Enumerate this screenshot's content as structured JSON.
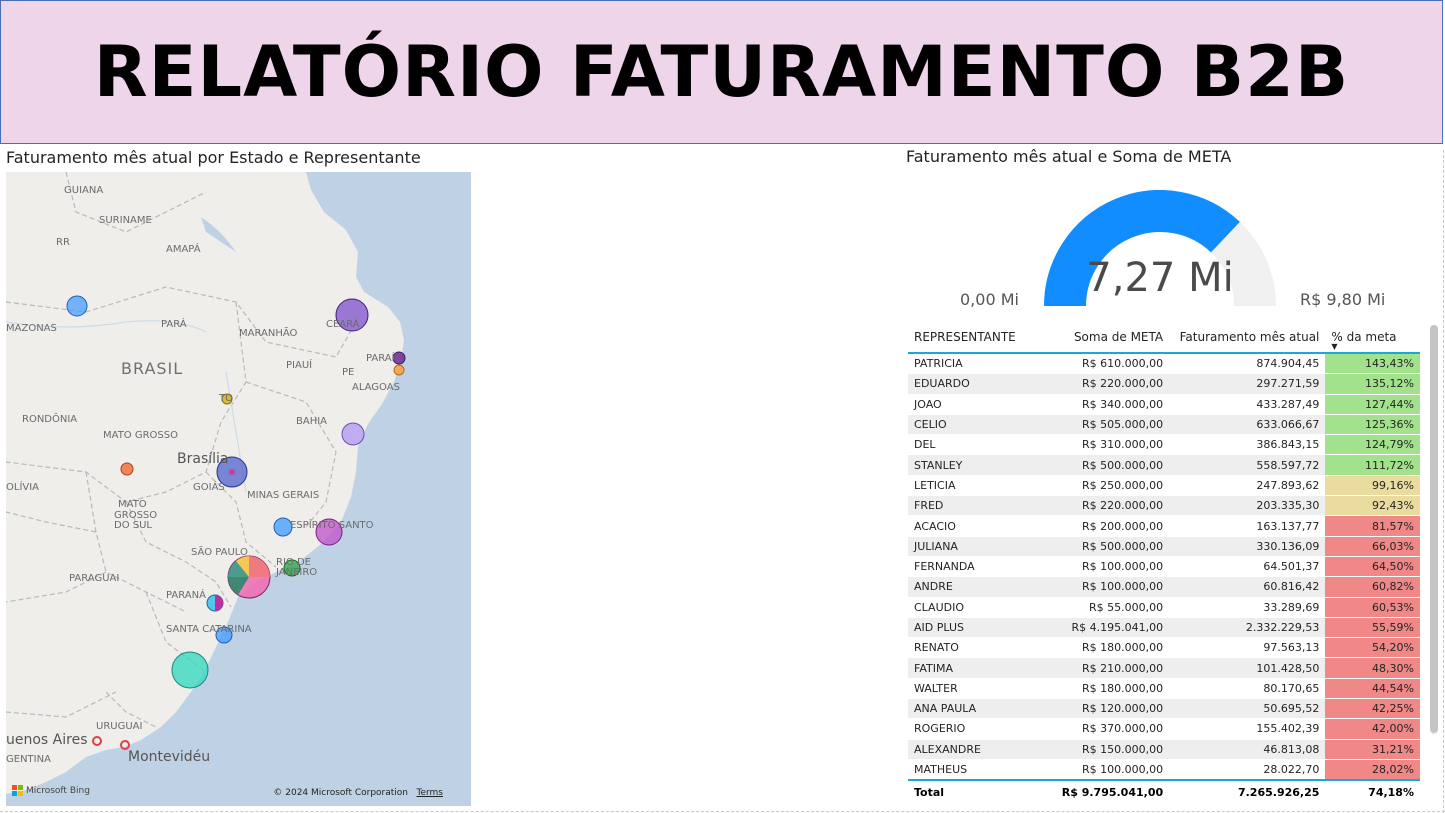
{
  "header": {
    "title": "RELATÓRIO FATURAMENTO B2B"
  },
  "map_visual": {
    "title": "Faturamento mês atual por Estado e Representante",
    "labels": {
      "guiana": "GUIANA",
      "suriname": "SURINAME",
      "rr": "RR",
      "amapa": "AMAPÁ",
      "amazonas": "MAZONAS",
      "para": "PARÁ",
      "maranhao": "MARANHÃO",
      "ceara": "CEARÁ",
      "brasil": "BRASIL",
      "piaui": "PIAUÍ",
      "paraiba": "PARAÍ",
      "pe": "PE",
      "alagoas": "ALAGOAS",
      "to": "TO",
      "rondonia": "RONDÔNIA",
      "bahia": "BAHIA",
      "mato_grosso": "MATO GROSSO",
      "brasilia": "Brasília",
      "bolivia": "OLÍVIA",
      "goias": "GOIÁS",
      "minas": "MINAS GERAIS",
      "ms1": "MATO",
      "ms2": "GROSSO",
      "ms3": "DO SUL",
      "es": "ESPÍRITO SANTO",
      "sao_paulo": "SÃO PAULO",
      "rio": "RIO DE JANEIRO",
      "paraguai": "PARAGUAI",
      "parana": "PARANÁ",
      "santa_catarina": "SANTA CATARINA",
      "uruguai": "URUGUAI",
      "buenos_aires": "uenos Aires",
      "argentina": "GENTINA",
      "montevideu": "Montevidéu"
    },
    "bing_label": "Microsoft Bing",
    "copyright": "© 2024 Microsoft Corporation",
    "terms": "Terms"
  },
  "gauge_visual": {
    "title": "Faturamento mês atual e Soma de META",
    "value_label": "7,27 Mi",
    "min_label": "0,00 Mi",
    "max_label": "R$ 9,80 Mi",
    "value": 7.27,
    "max": 9.8,
    "fill_color": "#118dff",
    "track_color": "#f0f0f0"
  },
  "table": {
    "headers": [
      "REPRESENTANTE",
      "Soma de META",
      "Faturamento mês atual",
      "% da meta"
    ],
    "rows": [
      [
        "PATRICIA",
        "R$ 610.000,00",
        "874.904,45",
        "143,43%",
        "green"
      ],
      [
        "EDUARDO",
        "R$ 220.000,00",
        "297.271,59",
        "135,12%",
        "green"
      ],
      [
        "JOAO",
        "R$ 340.000,00",
        "433.287,49",
        "127,44%",
        "green"
      ],
      [
        "CELIO",
        "R$ 505.000,00",
        "633.066,67",
        "125,36%",
        "green"
      ],
      [
        "DEL",
        "R$ 310.000,00",
        "386.843,15",
        "124,79%",
        "green"
      ],
      [
        "STANLEY",
        "R$ 500.000,00",
        "558.597,72",
        "111,72%",
        "green"
      ],
      [
        "LETICIA",
        "R$ 250.000,00",
        "247.893,62",
        "99,16%",
        "yellow"
      ],
      [
        "FRED",
        "R$ 220.000,00",
        "203.335,30",
        "92,43%",
        "yellow"
      ],
      [
        "ACACIO",
        "R$ 200.000,00",
        "163.137,77",
        "81,57%",
        "red"
      ],
      [
        "JULIANA",
        "R$ 500.000,00",
        "330.136,09",
        "66,03%",
        "red"
      ],
      [
        "FERNANDA",
        "R$ 100.000,00",
        "64.501,37",
        "64,50%",
        "red"
      ],
      [
        "ANDRE",
        "R$ 100.000,00",
        "60.816,42",
        "60,82%",
        "red"
      ],
      [
        "CLAUDIO",
        "R$ 55.000,00",
        "33.289,69",
        "60,53%",
        "red"
      ],
      [
        "AID PLUS",
        "R$ 4.195.041,00",
        "2.332.229,53",
        "55,59%",
        "red"
      ],
      [
        "RENATO",
        "R$ 180.000,00",
        "97.563,13",
        "54,20%",
        "red"
      ],
      [
        "FATIMA",
        "R$ 210.000,00",
        "101.428,50",
        "48,30%",
        "red"
      ],
      [
        "WALTER",
        "R$ 180.000,00",
        "80.170,65",
        "44,54%",
        "red"
      ],
      [
        "ANA PAULA",
        "R$ 120.000,00",
        "50.695,52",
        "42,25%",
        "red"
      ],
      [
        "ROGERIO",
        "R$ 370.000,00",
        "155.402,39",
        "42,00%",
        "red"
      ],
      [
        "ALEXANDRE",
        "R$ 150.000,00",
        "46.813,08",
        "31,21%",
        "red"
      ],
      [
        "MATHEUS",
        "R$ 100.000,00",
        "28.022,70",
        "28,02%",
        "red"
      ]
    ],
    "total": [
      "Total",
      "R$ 9.795.041,00",
      "7.265.926,25",
      "74,18%"
    ],
    "colors": {
      "green": "#a3e28c",
      "yellow": "#eadc9e",
      "red": "#f08888"
    }
  }
}
